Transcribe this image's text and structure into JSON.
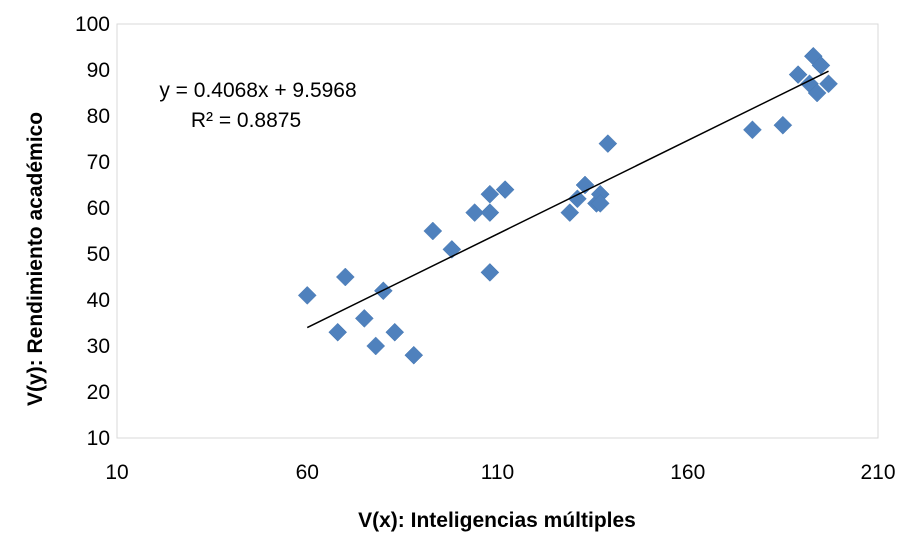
{
  "chart_data": {
    "type": "scatter",
    "title": "",
    "xlabel": "V(x): Inteligencias múltiples",
    "ylabel": "V(y): Rendimiento académico",
    "xlim": [
      10,
      210
    ],
    "ylim": [
      10,
      100
    ],
    "xticks": [
      10,
      60,
      110,
      160,
      210
    ],
    "yticks": [
      10,
      20,
      30,
      40,
      50,
      60,
      70,
      80,
      90,
      100
    ],
    "grid": false,
    "legend": "none",
    "marker": "diamond",
    "series": [
      {
        "color": "#4F81BD",
        "points": [
          [
            60,
            41
          ],
          [
            68,
            33
          ],
          [
            70,
            45
          ],
          [
            75,
            36
          ],
          [
            78,
            30
          ],
          [
            80,
            42
          ],
          [
            83,
            33
          ],
          [
            88,
            28
          ],
          [
            93,
            55
          ],
          [
            98,
            51
          ],
          [
            104,
            59
          ],
          [
            108,
            63
          ],
          [
            108,
            59
          ],
          [
            108,
            46
          ],
          [
            112,
            64
          ],
          [
            129,
            59
          ],
          [
            131,
            62
          ],
          [
            133,
            65
          ],
          [
            136,
            61
          ],
          [
            137,
            63
          ],
          [
            137,
            61
          ],
          [
            139,
            74
          ],
          [
            177,
            77
          ],
          [
            185,
            78
          ],
          [
            189,
            89
          ],
          [
            192,
            87
          ],
          [
            193,
            93
          ],
          [
            194,
            85
          ],
          [
            195,
            91
          ],
          [
            197,
            87
          ]
        ]
      }
    ],
    "trendline": {
      "type": "linear",
      "slope": 0.4068,
      "intercept": 9.5968,
      "x_range": [
        60,
        197
      ],
      "color": "#000000",
      "equation_label": "y = 0.4068x + 9.5968",
      "r2_label": "R² = 0.8875"
    }
  }
}
